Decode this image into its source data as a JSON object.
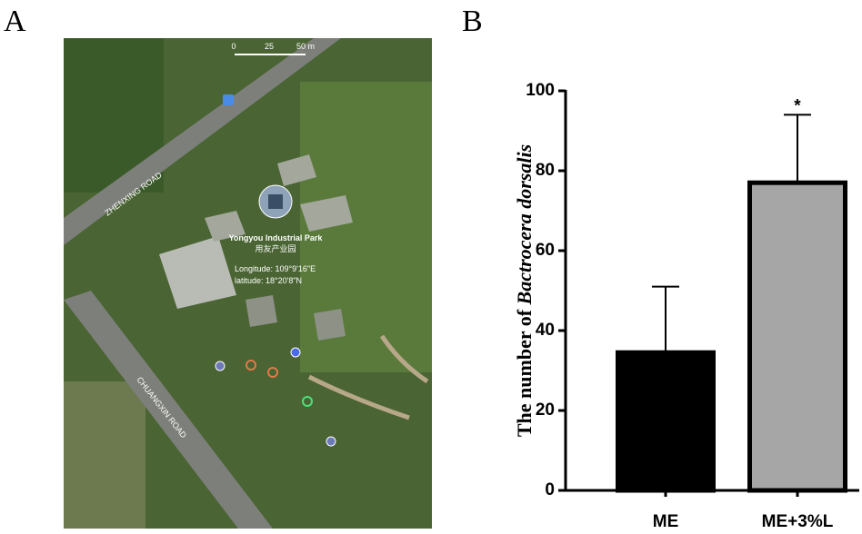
{
  "panel_labels": [
    "A",
    "B"
  ],
  "map": {
    "scale": [
      "0",
      "25",
      "50 m"
    ],
    "roads": [
      "ZHENXING ROAD",
      "CHUANGXIN ROAD"
    ],
    "place": {
      "name": "Yongyou Industrial Park",
      "local_name": "用友产业园",
      "longitude": "Longitude: 109°9'16\"E",
      "latitude": "latitude: 18°20'8\"N"
    }
  },
  "chart_data": {
    "type": "bar",
    "ylabel": {
      "text": "The number of",
      "species": "Bactrocera dorsalis"
    },
    "categories": [
      "ME",
      "ME+3%L"
    ],
    "series": [
      {
        "values": [
          34.5,
          77
        ],
        "errors": [
          16.5,
          17
        ],
        "colors": [
          "#000000",
          "#a6a6a6"
        ]
      }
    ],
    "significance_labels": [
      null,
      "*"
    ],
    "ylim": [
      0,
      100
    ],
    "yticks": [
      0,
      20,
      40,
      60,
      80,
      100
    ]
  }
}
